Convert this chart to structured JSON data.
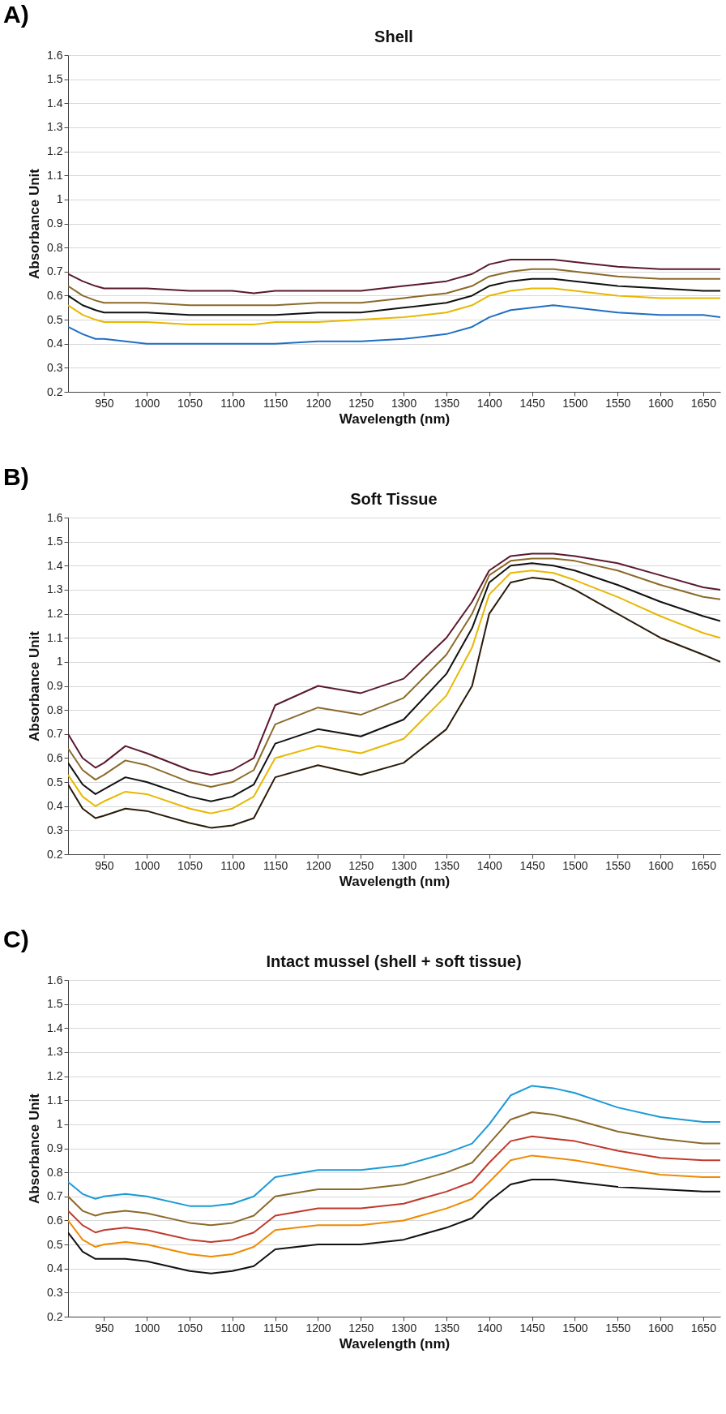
{
  "chart_data": [
    {
      "type": "line",
      "title": "Shell",
      "annotations": [
        "A)"
      ],
      "xlabel": "Wavelength (nm)",
      "ylabel": "Absorbance Unit",
      "xlim": [
        908,
        1670
      ],
      "xticks": [
        950,
        1000,
        1050,
        1100,
        1150,
        1200,
        1250,
        1300,
        1350,
        1400,
        1450,
        1500,
        1550,
        1600,
        1650
      ],
      "ylim": [
        0.2,
        1.6
      ],
      "yticks": [
        0.2,
        0.3,
        0.4,
        0.5,
        0.6,
        0.7,
        0.8,
        0.9,
        1,
        1.1,
        1.2,
        1.3,
        1.4,
        1.5,
        1.6
      ],
      "grid": "y",
      "line_style": "solid",
      "x": [
        908,
        925,
        940,
        950,
        975,
        1000,
        1050,
        1075,
        1100,
        1125,
        1150,
        1200,
        1250,
        1300,
        1350,
        1380,
        1400,
        1425,
        1450,
        1475,
        1500,
        1550,
        1600,
        1650,
        1670
      ],
      "series": [
        {
          "color": "#5a1a2e",
          "values": [
            0.69,
            0.66,
            0.64,
            0.63,
            0.63,
            0.63,
            0.62,
            0.62,
            0.62,
            0.61,
            0.62,
            0.62,
            0.62,
            0.64,
            0.66,
            0.69,
            0.73,
            0.75,
            0.75,
            0.75,
            0.74,
            0.72,
            0.71,
            0.71,
            0.71
          ]
        },
        {
          "color": "#8b6a2a",
          "values": [
            0.64,
            0.6,
            0.58,
            0.57,
            0.57,
            0.57,
            0.56,
            0.56,
            0.56,
            0.56,
            0.56,
            0.57,
            0.57,
            0.59,
            0.61,
            0.64,
            0.68,
            0.7,
            0.71,
            0.71,
            0.7,
            0.68,
            0.67,
            0.67,
            0.67
          ]
        },
        {
          "color": "#111111",
          "values": [
            0.6,
            0.56,
            0.54,
            0.53,
            0.53,
            0.53,
            0.52,
            0.52,
            0.52,
            0.52,
            0.52,
            0.53,
            0.53,
            0.55,
            0.57,
            0.6,
            0.64,
            0.66,
            0.67,
            0.67,
            0.66,
            0.64,
            0.63,
            0.62,
            0.62
          ]
        },
        {
          "color": "#e8b800",
          "values": [
            0.56,
            0.52,
            0.5,
            0.49,
            0.49,
            0.49,
            0.48,
            0.48,
            0.48,
            0.48,
            0.49,
            0.49,
            0.5,
            0.51,
            0.53,
            0.56,
            0.6,
            0.62,
            0.63,
            0.63,
            0.62,
            0.6,
            0.59,
            0.59,
            0.59
          ]
        },
        {
          "color": "#1f6fc4",
          "values": [
            0.47,
            0.44,
            0.42,
            0.42,
            0.41,
            0.4,
            0.4,
            0.4,
            0.4,
            0.4,
            0.4,
            0.41,
            0.41,
            0.42,
            0.44,
            0.47,
            0.51,
            0.54,
            0.55,
            0.56,
            0.55,
            0.53,
            0.52,
            0.52,
            0.51
          ]
        }
      ]
    },
    {
      "type": "line",
      "title": "Soft Tissue",
      "annotations": [
        "B)"
      ],
      "xlabel": "Wavelength (nm)",
      "ylabel": "Absorbance Unit",
      "xlim": [
        908,
        1670
      ],
      "xticks": [
        950,
        1000,
        1050,
        1100,
        1150,
        1200,
        1250,
        1300,
        1350,
        1400,
        1450,
        1500,
        1550,
        1600,
        1650
      ],
      "ylim": [
        0.2,
        1.6
      ],
      "yticks": [
        0.2,
        0.3,
        0.4,
        0.5,
        0.6,
        0.7,
        0.8,
        0.9,
        1,
        1.1,
        1.2,
        1.3,
        1.4,
        1.5,
        1.6
      ],
      "grid": "y",
      "line_style": "solid",
      "x": [
        908,
        925,
        940,
        950,
        975,
        1000,
        1050,
        1075,
        1100,
        1125,
        1150,
        1200,
        1250,
        1300,
        1350,
        1380,
        1400,
        1425,
        1450,
        1475,
        1500,
        1550,
        1600,
        1650,
        1670
      ],
      "series": [
        {
          "color": "#5a1a2e",
          "values": [
            0.7,
            0.6,
            0.56,
            0.58,
            0.65,
            0.62,
            0.55,
            0.53,
            0.55,
            0.6,
            0.82,
            0.9,
            0.87,
            0.93,
            1.1,
            1.25,
            1.38,
            1.44,
            1.45,
            1.45,
            1.44,
            1.41,
            1.36,
            1.31,
            1.3
          ]
        },
        {
          "color": "#8b6a2a",
          "values": [
            0.64,
            0.55,
            0.51,
            0.53,
            0.59,
            0.57,
            0.5,
            0.48,
            0.5,
            0.55,
            0.74,
            0.81,
            0.78,
            0.85,
            1.03,
            1.2,
            1.36,
            1.42,
            1.43,
            1.43,
            1.42,
            1.38,
            1.32,
            1.27,
            1.26
          ]
        },
        {
          "color": "#111111",
          "values": [
            0.58,
            0.49,
            0.45,
            0.47,
            0.52,
            0.5,
            0.44,
            0.42,
            0.44,
            0.49,
            0.66,
            0.72,
            0.69,
            0.76,
            0.95,
            1.14,
            1.33,
            1.4,
            1.41,
            1.4,
            1.38,
            1.32,
            1.25,
            1.19,
            1.17
          ]
        },
        {
          "color": "#e8b800",
          "values": [
            0.53,
            0.44,
            0.4,
            0.42,
            0.46,
            0.45,
            0.39,
            0.37,
            0.39,
            0.44,
            0.6,
            0.65,
            0.62,
            0.68,
            0.86,
            1.06,
            1.28,
            1.37,
            1.38,
            1.37,
            1.34,
            1.27,
            1.19,
            1.12,
            1.1
          ]
        },
        {
          "color": "#2a1a0a",
          "values": [
            0.49,
            0.39,
            0.35,
            0.36,
            0.39,
            0.38,
            0.33,
            0.31,
            0.32,
            0.35,
            0.52,
            0.57,
            0.53,
            0.58,
            0.72,
            0.9,
            1.2,
            1.33,
            1.35,
            1.34,
            1.3,
            1.2,
            1.1,
            1.03,
            1.0
          ]
        }
      ]
    },
    {
      "type": "line",
      "title": "Intact mussel (shell + soft tissue)",
      "annotations": [
        "C)"
      ],
      "xlabel": "Wavelength (nm)",
      "ylabel": "Absorbance Unit",
      "xlim": [
        908,
        1670
      ],
      "xticks": [
        950,
        1000,
        1050,
        1100,
        1150,
        1200,
        1250,
        1300,
        1350,
        1400,
        1450,
        1500,
        1550,
        1600,
        1650
      ],
      "ylim": [
        0.2,
        1.6
      ],
      "yticks": [
        0.2,
        0.3,
        0.4,
        0.5,
        0.6,
        0.7,
        0.8,
        0.9,
        1,
        1.1,
        1.2,
        1.3,
        1.4,
        1.5,
        1.6
      ],
      "grid": "y",
      "line_style": "solid",
      "x": [
        908,
        925,
        940,
        950,
        975,
        1000,
        1050,
        1075,
        1100,
        1125,
        1150,
        1200,
        1250,
        1300,
        1350,
        1380,
        1400,
        1425,
        1450,
        1475,
        1500,
        1550,
        1600,
        1650,
        1670
      ],
      "series": [
        {
          "color": "#1a9ad6",
          "values": [
            0.76,
            0.71,
            0.69,
            0.7,
            0.71,
            0.7,
            0.66,
            0.66,
            0.67,
            0.7,
            0.78,
            0.81,
            0.81,
            0.83,
            0.88,
            0.92,
            1.0,
            1.12,
            1.16,
            1.15,
            1.13,
            1.07,
            1.03,
            1.01,
            1.01
          ]
        },
        {
          "color": "#8b6a2a",
          "values": [
            0.7,
            0.64,
            0.62,
            0.63,
            0.64,
            0.63,
            0.59,
            0.58,
            0.59,
            0.62,
            0.7,
            0.73,
            0.73,
            0.75,
            0.8,
            0.84,
            0.92,
            1.02,
            1.05,
            1.04,
            1.02,
            0.97,
            0.94,
            0.92,
            0.92
          ]
        },
        {
          "color": "#c0392b",
          "values": [
            0.64,
            0.58,
            0.55,
            0.56,
            0.57,
            0.56,
            0.52,
            0.51,
            0.52,
            0.55,
            0.62,
            0.65,
            0.65,
            0.67,
            0.72,
            0.76,
            0.84,
            0.93,
            0.95,
            0.94,
            0.93,
            0.89,
            0.86,
            0.85,
            0.85
          ]
        },
        {
          "color": "#f08a00",
          "values": [
            0.6,
            0.52,
            0.49,
            0.5,
            0.51,
            0.5,
            0.46,
            0.45,
            0.46,
            0.49,
            0.56,
            0.58,
            0.58,
            0.6,
            0.65,
            0.69,
            0.76,
            0.85,
            0.87,
            0.86,
            0.85,
            0.82,
            0.79,
            0.78,
            0.78
          ]
        },
        {
          "color": "#111111",
          "values": [
            0.55,
            0.47,
            0.44,
            0.44,
            0.44,
            0.43,
            0.39,
            0.38,
            0.39,
            0.41,
            0.48,
            0.5,
            0.5,
            0.52,
            0.57,
            0.61,
            0.68,
            0.75,
            0.77,
            0.77,
            0.76,
            0.74,
            0.73,
            0.72,
            0.72
          ]
        }
      ]
    }
  ]
}
